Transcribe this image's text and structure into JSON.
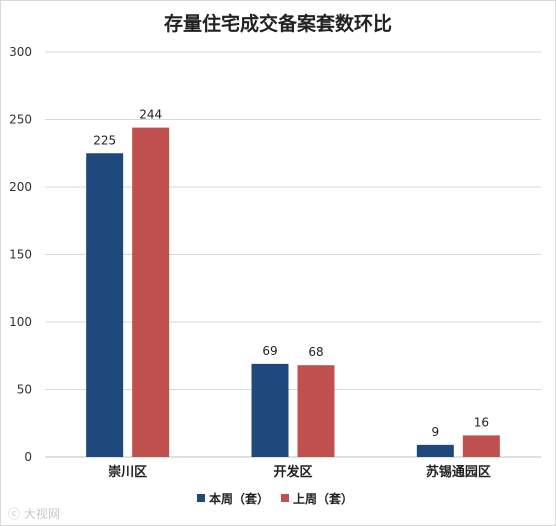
{
  "chart_data": {
    "type": "bar",
    "title": "存量住宅成交备案套数环比",
    "categories": [
      "崇川区",
      "开发区",
      "苏锡通园区"
    ],
    "series": [
      {
        "name": "本周（套）",
        "color": "#1f497d",
        "values": [
          225,
          69,
          9
        ]
      },
      {
        "name": "上周（套）",
        "color": "#c0504d",
        "values": [
          244,
          68,
          16
        ]
      }
    ],
    "ylim": [
      0,
      300
    ],
    "yticks": [
      0,
      50,
      100,
      150,
      200,
      250,
      300
    ],
    "grid": true,
    "legend": "bottom"
  },
  "watermark": "大视网"
}
